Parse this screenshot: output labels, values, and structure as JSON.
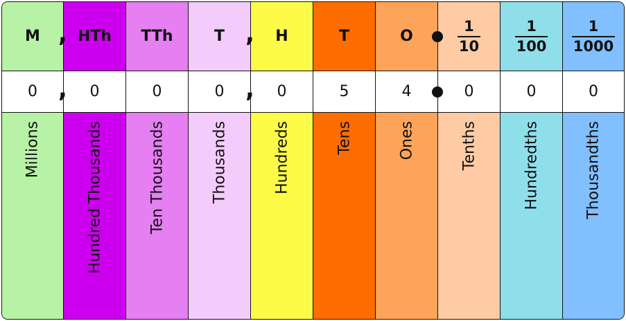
{
  "columns": [
    {
      "abbr": "M",
      "value": "0",
      "name": "Millions",
      "color": "#b8f2a6"
    },
    {
      "abbr": "HTh",
      "value": "0",
      "name": "Hundred Thousands",
      "color": "#cc00ee"
    },
    {
      "abbr": "TTh",
      "value": "0",
      "name": "Ten Thousands",
      "color": "#e57ff2"
    },
    {
      "abbr": "T",
      "value": "0",
      "name": "Thousands",
      "color": "#f4ccfb"
    },
    {
      "abbr": "H",
      "value": "0",
      "name": "Hundreds",
      "color": "#fdfb48"
    },
    {
      "abbr": "T",
      "value": "5",
      "name": "Tens",
      "color": "#ff6d00"
    },
    {
      "abbr": "O",
      "value": "4",
      "name": "Ones",
      "color": "#fea45a"
    },
    {
      "frac_num": "1",
      "frac_den": "10",
      "value": "0",
      "name": "Tenths",
      "color": "#ffcba4"
    },
    {
      "frac_num": "1",
      "frac_den": "100",
      "value": "0",
      "name": "Hundredths",
      "color": "#8fdfea"
    },
    {
      "frac_num": "1",
      "frac_den": "1000",
      "value": "0",
      "name": "Thousandths",
      "color": "#82bfff"
    }
  ],
  "separators": {
    "comma_glyph": ",",
    "decimal_point": "•"
  }
}
